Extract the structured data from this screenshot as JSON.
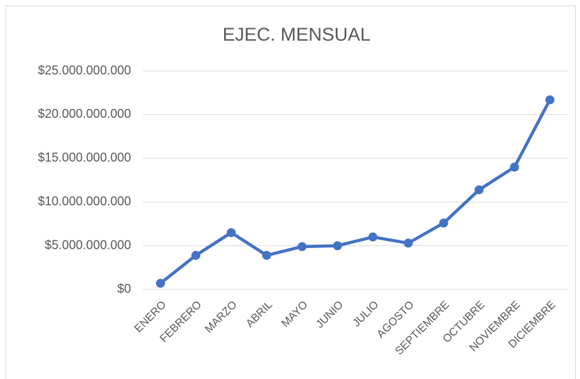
{
  "chart_data": {
    "type": "line",
    "title": "EJEC. MENSUAL",
    "categories": [
      "ENERO",
      "FEBRERO",
      "MARZO",
      "ABRIL",
      "MAYO",
      "JUNIO",
      "JULIO",
      "AGOSTO",
      "SEPTIEMBRE",
      "OCTUBRE",
      "NOVIEMBRE",
      "DICIEMBRE"
    ],
    "series": [
      {
        "name": "EJEC. MENSUAL",
        "color": "#4472c4",
        "values": [
          700000000,
          3900000000,
          6500000000,
          3900000000,
          4900000000,
          5000000000,
          6000000000,
          5300000000,
          7600000000,
          11400000000,
          14000000000,
          21700000000
        ]
      }
    ],
    "ylim": [
      0,
      25000000000
    ],
    "yticks": [
      {
        "value": 0,
        "label": "$0"
      },
      {
        "value": 5000000000,
        "label": "$5.000.000.000"
      },
      {
        "value": 10000000000,
        "label": "$10.000.000.000"
      },
      {
        "value": 15000000000,
        "label": "$15.000.000.000"
      },
      {
        "value": 20000000000,
        "label": "$20.000.000.000"
      },
      {
        "value": 25000000000,
        "label": "$25.000.000.000"
      }
    ],
    "grid": true
  }
}
